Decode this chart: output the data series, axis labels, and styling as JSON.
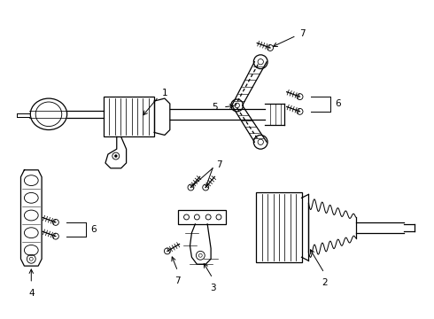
{
  "background_color": "#ffffff",
  "line_color": "#000000",
  "figure_width": 4.9,
  "figure_height": 3.6,
  "dpi": 100
}
